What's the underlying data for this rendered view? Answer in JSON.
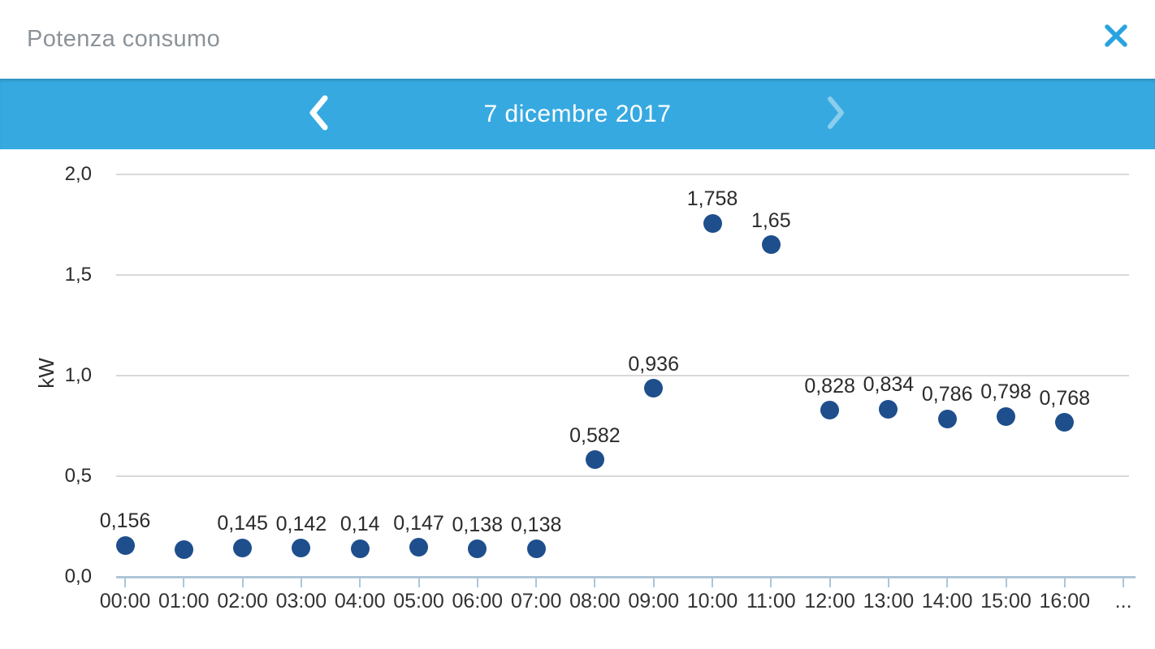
{
  "header": {
    "title": "Potenza consumo",
    "close_icon": "close-icon"
  },
  "date_nav": {
    "date_label": "7 dicembre 2017",
    "prev_icon": "chevron-left-icon",
    "next_icon": "chevron-right-icon",
    "next_disabled": true
  },
  "colors": {
    "accent_blue": "#36a9e1",
    "close_icon_blue": "#29a3e0",
    "point_navy": "#1e4e8c",
    "gridline_gray": "#d8d8d8",
    "axis_blue_gray": "#aec6d8",
    "header_title_gray": "#8b9399"
  },
  "chart_data": {
    "type": "scatter",
    "title": "Potenza consumo",
    "xlabel": "",
    "ylabel": "kW",
    "ylim": [
      0,
      2.0
    ],
    "yticks": [
      0,
      0.5,
      1.0,
      1.5,
      2.0
    ],
    "ytick_labels": [
      "0,0",
      "0,5",
      "1,0",
      "1,5",
      "2,0"
    ],
    "grid": true,
    "legend": "none",
    "categories": [
      "00:00",
      "01:00",
      "02:00",
      "03:00",
      "04:00",
      "05:00",
      "06:00",
      "07:00",
      "08:00",
      "09:00",
      "10:00",
      "11:00",
      "12:00",
      "13:00",
      "14:00",
      "15:00",
      "16:00"
    ],
    "x_overflow_label": "...",
    "values": [
      0.156,
      0.137,
      0.145,
      0.142,
      0.14,
      0.147,
      0.138,
      0.138,
      0.582,
      0.936,
      1.758,
      1.65,
      0.828,
      0.834,
      0.786,
      0.798,
      0.768
    ],
    "point_labels": [
      "0,156",
      "",
      "0,145",
      "0,142",
      "0,14",
      "0,147",
      "0,138",
      "0,138",
      "0,582",
      "0,936",
      "1,758",
      "1,65",
      "0,828",
      "0,834",
      "0,786",
      "0,798",
      "0,768"
    ]
  }
}
